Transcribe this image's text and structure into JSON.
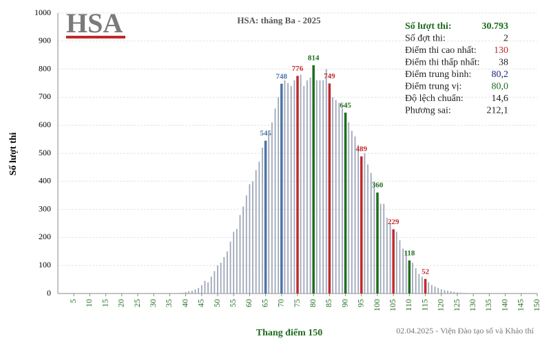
{
  "chart_data": {
    "type": "bar",
    "logo": "HSA",
    "title": "HSA: tháng Ba - 2025",
    "x_label": "Thang điểm 150",
    "y_label": "Số lượt thi",
    "footer": "02.04.2025 - Viện Đào tạo số và Khảo thí",
    "color": "#9ea6b8",
    "grid": true,
    "xlim": [
      0,
      150
    ],
    "xticks": [
      5,
      10,
      15,
      20,
      25,
      30,
      35,
      40,
      45,
      50,
      55,
      60,
      65,
      70,
      75,
      80,
      85,
      90,
      95,
      100,
      105,
      110,
      115,
      120,
      125,
      130,
      135,
      140,
      145,
      150
    ],
    "ylim": [
      0,
      1000
    ],
    "yticks": [
      0,
      100,
      200,
      300,
      400,
      500,
      600,
      700,
      800,
      900,
      1000
    ],
    "x": [
      38,
      39,
      40,
      41,
      42,
      43,
      44,
      45,
      46,
      47,
      48,
      49,
      50,
      51,
      52,
      53,
      54,
      55,
      56,
      57,
      58,
      59,
      60,
      61,
      62,
      63,
      64,
      65,
      66,
      67,
      68,
      69,
      70,
      71,
      72,
      73,
      74,
      75,
      76,
      77,
      78,
      79,
      80,
      81,
      82,
      83,
      84,
      85,
      86,
      87,
      88,
      89,
      90,
      91,
      92,
      93,
      94,
      95,
      96,
      97,
      98,
      99,
      100,
      101,
      102,
      103,
      104,
      105,
      106,
      107,
      108,
      109,
      110,
      111,
      112,
      113,
      114,
      115,
      116,
      117,
      118,
      119,
      120,
      121,
      122,
      123,
      124,
      125,
      126,
      127,
      128,
      129,
      130
    ],
    "values": [
      2,
      3,
      5,
      8,
      10,
      15,
      20,
      30,
      45,
      40,
      60,
      80,
      100,
      110,
      130,
      150,
      185,
      220,
      230,
      280,
      310,
      350,
      390,
      400,
      440,
      470,
      520,
      545,
      580,
      610,
      660,
      700,
      748,
      760,
      750,
      740,
      760,
      776,
      780,
      740,
      760,
      770,
      814,
      760,
      760,
      760,
      800,
      749,
      700,
      690,
      680,
      660,
      645,
      610,
      580,
      560,
      530,
      489,
      500,
      460,
      430,
      400,
      360,
      320,
      320,
      270,
      250,
      229,
      220,
      190,
      160,
      150,
      118,
      110,
      90,
      70,
      60,
      52,
      40,
      30,
      25,
      20,
      15,
      12,
      10,
      8,
      6,
      4,
      3,
      2,
      2,
      1,
      1
    ],
    "colors": [
      "#9ea6b8",
      "#9ea6b8",
      "#9ea6b8",
      "#9ea6b8",
      "#9ea6b8",
      "#9ea6b8",
      "#9ea6b8",
      "#9ea6b8",
      "#9ea6b8",
      "#9ea6b8",
      "#9ea6b8",
      "#9ea6b8",
      "#9ea6b8",
      "#9ea6b8",
      "#9ea6b8",
      "#9ea6b8",
      "#9ea6b8",
      "#9ea6b8",
      "#9ea6b8",
      "#9ea6b8",
      "#9ea6b8",
      "#9ea6b8",
      "#9ea6b8",
      "#9ea6b8",
      "#9ea6b8",
      "#9ea6b8",
      "#9ea6b8",
      "#4a74a8",
      "#9ea6b8",
      "#9ea6b8",
      "#9ea6b8",
      "#9ea6b8",
      "#4a74a8",
      "#9ea6b8",
      "#9ea6b8",
      "#9ea6b8",
      "#9ea6b8",
      "#c0282d",
      "#9ea6b8",
      "#9ea6b8",
      "#9ea6b8",
      "#9ea6b8",
      "#1e6b1e",
      "#9ea6b8",
      "#9ea6b8",
      "#9ea6b8",
      "#9ea6b8",
      "#c0282d",
      "#9ea6b8",
      "#9ea6b8",
      "#9ea6b8",
      "#9ea6b8",
      "#1e6b1e",
      "#9ea6b8",
      "#9ea6b8",
      "#9ea6b8",
      "#9ea6b8",
      "#c0282d",
      "#9ea6b8",
      "#9ea6b8",
      "#9ea6b8",
      "#9ea6b8",
      "#1e6b1e",
      "#9ea6b8",
      "#9ea6b8",
      "#9ea6b8",
      "#9ea6b8",
      "#c0282d",
      "#9ea6b8",
      "#9ea6b8",
      "#9ea6b8",
      "#9ea6b8",
      "#1e6b1e",
      "#9ea6b8",
      "#9ea6b8",
      "#9ea6b8",
      "#9ea6b8",
      "#c0282d",
      "#9ea6b8",
      "#9ea6b8",
      "#9ea6b8",
      "#9ea6b8",
      "#9ea6b8",
      "#9ea6b8",
      "#9ea6b8",
      "#9ea6b8",
      "#9ea6b8",
      "#9ea6b8",
      "#9ea6b8",
      "#9ea6b8",
      "#9ea6b8",
      "#9ea6b8",
      "#9ea6b8"
    ],
    "stats": [
      {
        "label": "Số lượt thi:",
        "value": "30.793",
        "color": "#1e6b1e"
      },
      {
        "label": "Số đợt thi:",
        "value": "2",
        "color": "#222222"
      },
      {
        "label": "Điểm thi cao nhất:",
        "value": "130",
        "color": "#c0282d"
      },
      {
        "label": "Điểm thi thấp nhất:",
        "value": "38",
        "color": "#222222"
      },
      {
        "label": "Điểm trung bình:",
        "value": "80,2",
        "color": "#1a237e"
      },
      {
        "label": "Điểm trung vị:",
        "value": "80,0",
        "color": "#1e6b1e"
      },
      {
        "label": "Độ lệch chuẩn:",
        "value": "14,6",
        "color": "#222222"
      },
      {
        "label": "Phương sai:",
        "value": "212,1",
        "color": "#222222"
      }
    ]
  }
}
